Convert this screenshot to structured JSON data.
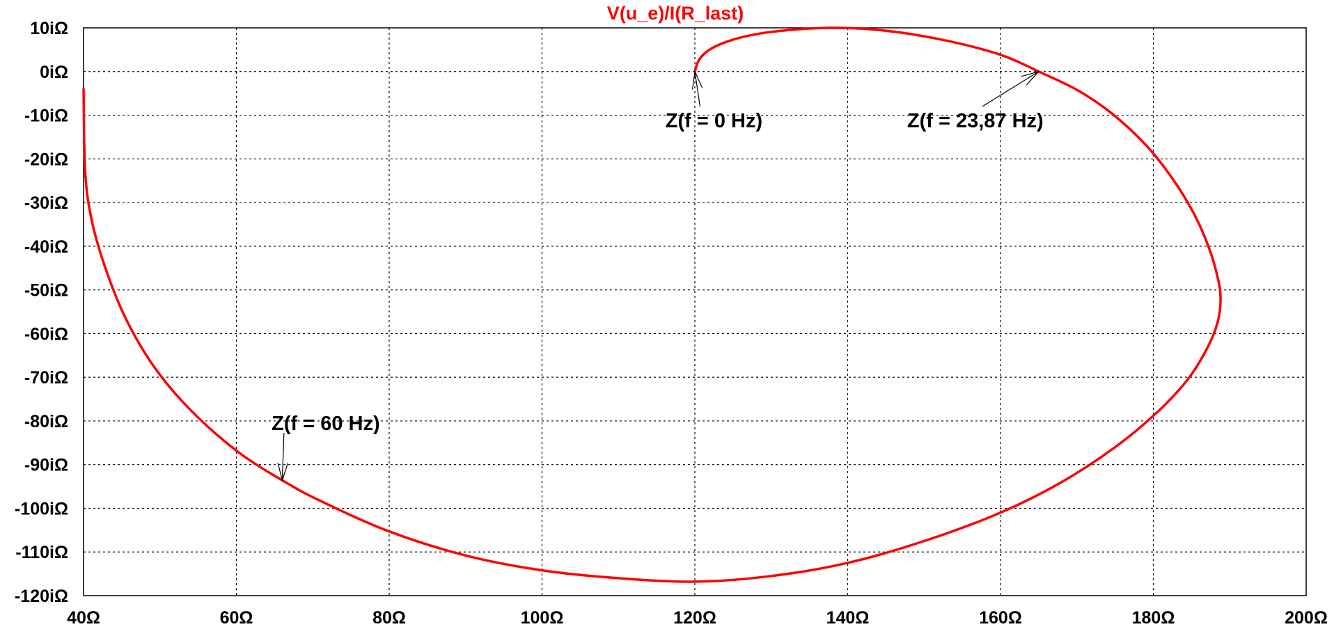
{
  "chart_data": {
    "type": "line",
    "title": "V(u_e)/I(R_last)",
    "xlabel": "",
    "ylabel": "",
    "xlim": [
      40,
      200
    ],
    "ylim": [
      -120,
      10
    ],
    "x_ticks": [
      40,
      60,
      80,
      100,
      120,
      140,
      160,
      180,
      200
    ],
    "x_tick_labels": [
      "40Ω",
      "60Ω",
      "80Ω",
      "100Ω",
      "120Ω",
      "140Ω",
      "160Ω",
      "180Ω",
      "200Ω"
    ],
    "y_ticks": [
      10,
      0,
      -10,
      -20,
      -30,
      -40,
      -50,
      -60,
      -70,
      -80,
      -90,
      -100,
      -110,
      -120
    ],
    "y_tick_labels": [
      "10iΩ",
      "0iΩ",
      "-10iΩ",
      "-20iΩ",
      "-30iΩ",
      "-40iΩ",
      "-50iΩ",
      "-60iΩ",
      "-70iΩ",
      "-80iΩ",
      "-90iΩ",
      "-100iΩ",
      "-110iΩ",
      "-120iΩ"
    ],
    "grid": true,
    "series": [
      {
        "name": "V(u_e)/I(R_last)",
        "color": "#ff0000",
        "points": [
          [
            120,
            0
          ],
          [
            120.6,
            2.8
          ],
          [
            122.2,
            5.3
          ],
          [
            125,
            7.3
          ],
          [
            128.5,
            8.7
          ],
          [
            133,
            9.6
          ],
          [
            137.5,
            10
          ],
          [
            142,
            9.8
          ],
          [
            147,
            8.9
          ],
          [
            152,
            7.4
          ],
          [
            157,
            5.4
          ],
          [
            161,
            3.2
          ],
          [
            165,
            0
          ],
          [
            170,
            -4.2
          ],
          [
            174.5,
            -9.5
          ],
          [
            179,
            -16.8
          ],
          [
            182.5,
            -24.5
          ],
          [
            185.3,
            -32.5
          ],
          [
            187.2,
            -40
          ],
          [
            188.4,
            -47
          ],
          [
            188.8,
            -52
          ],
          [
            188.4,
            -57.5
          ],
          [
            187,
            -63.5
          ],
          [
            184.5,
            -70.5
          ],
          [
            180.5,
            -78
          ],
          [
            175,
            -86
          ],
          [
            168,
            -94
          ],
          [
            160,
            -101
          ],
          [
            150,
            -107.5
          ],
          [
            140,
            -112.5
          ],
          [
            130,
            -115.5
          ],
          [
            120,
            -116.8
          ],
          [
            110,
            -116
          ],
          [
            100,
            -114.2
          ],
          [
            90,
            -110.8
          ],
          [
            80,
            -105.3
          ],
          [
            71,
            -98.3
          ],
          [
            66,
            -93.6
          ],
          [
            60,
            -86.8
          ],
          [
            54,
            -77.5
          ],
          [
            49.3,
            -67.8
          ],
          [
            45.5,
            -56.5
          ],
          [
            42.8,
            -44.7
          ],
          [
            41,
            -33.5
          ],
          [
            40.2,
            -22.5
          ],
          [
            40,
            -4
          ]
        ]
      }
    ],
    "annotations": [
      {
        "text": "Z(f = 0 Hz)",
        "target": [
          120,
          0
        ],
        "label_at": [
          122.5,
          -12.8
        ]
      },
      {
        "text": "Z(f = 23,87 Hz)",
        "target": [
          165,
          0
        ],
        "label_at": [
          156.7,
          -12.8
        ]
      },
      {
        "text": "Z(f = 60 Hz)",
        "target": [
          66,
          -93.6
        ],
        "label_at": [
          71.7,
          -82.1
        ]
      }
    ]
  }
}
